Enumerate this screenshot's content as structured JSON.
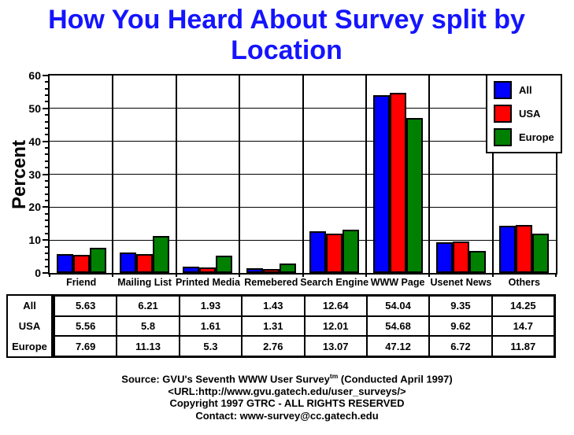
{
  "title": "How You Heard About Survey split by Location",
  "colors": {
    "title": "#1414FF",
    "all": "#0000FF",
    "usa": "#FF0000",
    "europe": "#008000",
    "axis": "#000000",
    "background": "#FFFFFF"
  },
  "chart_data": {
    "type": "bar",
    "title": "How You Heard About Survey split by Location",
    "xlabel": "",
    "ylabel": "Percent",
    "ylim": [
      0,
      60
    ],
    "ytick_major_step": 10,
    "ytick_minor_step": 2,
    "grid": true,
    "legend_position": "top-right",
    "categories": [
      "Friend",
      "Mailing List",
      "Printed Media",
      "Remebered",
      "Search Engine",
      "WWW Page",
      "Usenet News",
      "Others"
    ],
    "series": [
      {
        "name": "All",
        "color": "#0000FF",
        "values": [
          5.63,
          6.21,
          1.93,
          1.43,
          12.64,
          54.04,
          9.35,
          14.25
        ]
      },
      {
        "name": "USA",
        "color": "#FF0000",
        "values": [
          5.56,
          5.8,
          1.61,
          1.31,
          12.01,
          54.68,
          9.62,
          14.7
        ]
      },
      {
        "name": "Europe",
        "color": "#008000",
        "values": [
          7.69,
          11.13,
          5.3,
          2.76,
          13.07,
          47.12,
          6.72,
          11.87
        ]
      }
    ]
  },
  "legend": {
    "items": [
      {
        "label": "All",
        "color": "#0000FF"
      },
      {
        "label": "USA",
        "color": "#FF0000"
      },
      {
        "label": "Europe",
        "color": "#008000"
      }
    ]
  },
  "table": {
    "row_labels": [
      "All",
      "USA",
      "Europe"
    ],
    "rows": [
      [
        "5.63",
        "6.21",
        "1.93",
        "1.43",
        "12.64",
        "54.04",
        "9.35",
        "14.25"
      ],
      [
        "5.56",
        "5.8",
        "1.61",
        "1.31",
        "12.01",
        "54.68",
        "9.62",
        "14.7"
      ],
      [
        "7.69",
        "11.13",
        "5.3",
        "2.76",
        "13.07",
        "47.12",
        "6.72",
        "11.87"
      ]
    ]
  },
  "footer": {
    "source_prefix": "Source: GVU's Seventh WWW User Survey",
    "source_sup": "tm",
    "source_suffix": " (Conducted April 1997)",
    "url_line": "<URL:http://www.gvu.gatech.edu/user_surveys/>",
    "copyright_line": "Copyright 1997 GTRC - ALL RIGHTS RESERVED",
    "contact_line": "Contact: www-survey@cc.gatech.edu"
  }
}
